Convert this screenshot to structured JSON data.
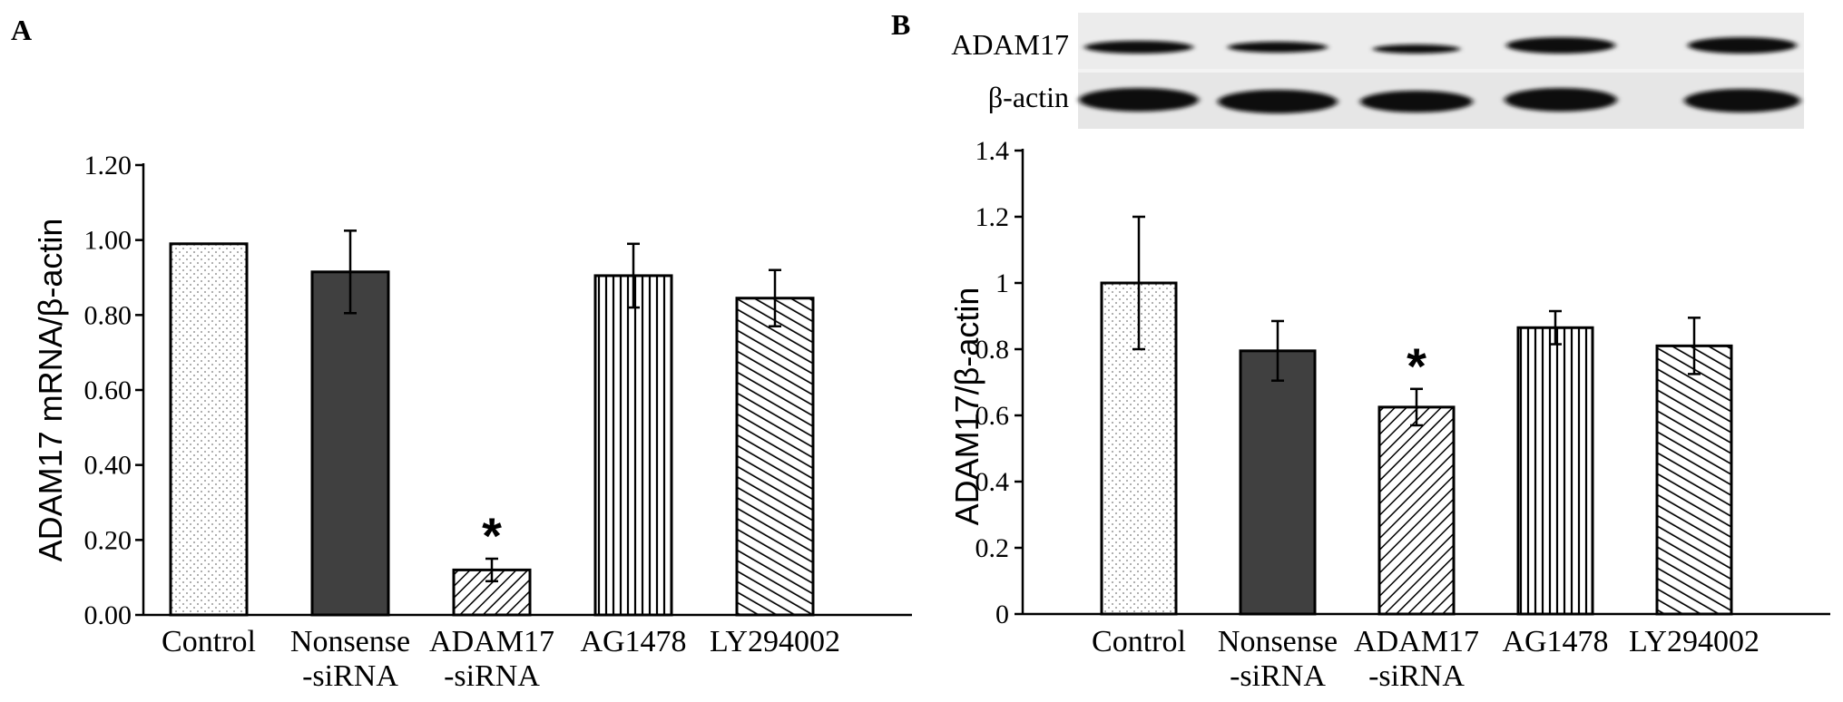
{
  "figure": {
    "panel_a_label": "A",
    "panel_b_label": "B",
    "colors": {
      "dark_bar": "#404040",
      "ink": "#000000",
      "background": "#ffffff"
    }
  },
  "blot": {
    "rows": [
      {
        "label": "ADAM17"
      },
      {
        "label": "β-actin"
      }
    ]
  },
  "chart_data": [
    {
      "type": "bar",
      "panel": "A",
      "ylabel": "ADAM17 mRNA/β-actin",
      "ylim": [
        0,
        1.2
      ],
      "yticks": [
        "0.00",
        "0.20",
        "0.40",
        "0.60",
        "0.80",
        "1.00",
        "1.20"
      ],
      "categories": [
        {
          "line1": "Control",
          "line2": ""
        },
        {
          "line1": "Nonsense",
          "line2": "-siRNA"
        },
        {
          "line1": "ADAM17",
          "line2": "-siRNA"
        },
        {
          "line1": "AG1478",
          "line2": ""
        },
        {
          "line1": "LY294002",
          "line2": ""
        }
      ],
      "values": [
        0.99,
        0.915,
        0.12,
        0.905,
        0.845
      ],
      "errors": [
        0,
        0.11,
        0.03,
        0.085,
        0.075
      ],
      "patterns": [
        "dots",
        "solid",
        "diag-back",
        "vertical",
        "diag-fwd"
      ],
      "annotations": [
        {
          "category_index": 2,
          "text": "*"
        }
      ],
      "grid": false,
      "legend": "none"
    },
    {
      "type": "bar",
      "panel": "B",
      "ylabel": "ADAM17/β-actin",
      "ylim": [
        0,
        1.4
      ],
      "yticks": [
        "0",
        "0.2",
        "0.4",
        "0.6",
        "0.8",
        "1",
        "1.2",
        "1.4"
      ],
      "categories": [
        {
          "line1": "Control",
          "line2": ""
        },
        {
          "line1": "Nonsense",
          "line2": "-siRNA"
        },
        {
          "line1": "ADAM17",
          "line2": "-siRNA"
        },
        {
          "line1": "AG1478",
          "line2": ""
        },
        {
          "line1": "LY294002",
          "line2": ""
        }
      ],
      "values": [
        1.0,
        0.795,
        0.625,
        0.865,
        0.81
      ],
      "errors": [
        0.2,
        0.09,
        0.055,
        0.05,
        0.085
      ],
      "patterns": [
        "dots",
        "solid",
        "diag-back",
        "vertical",
        "diag-fwd"
      ],
      "annotations": [
        {
          "category_index": 2,
          "text": "*"
        }
      ],
      "grid": false,
      "legend": "none"
    }
  ]
}
